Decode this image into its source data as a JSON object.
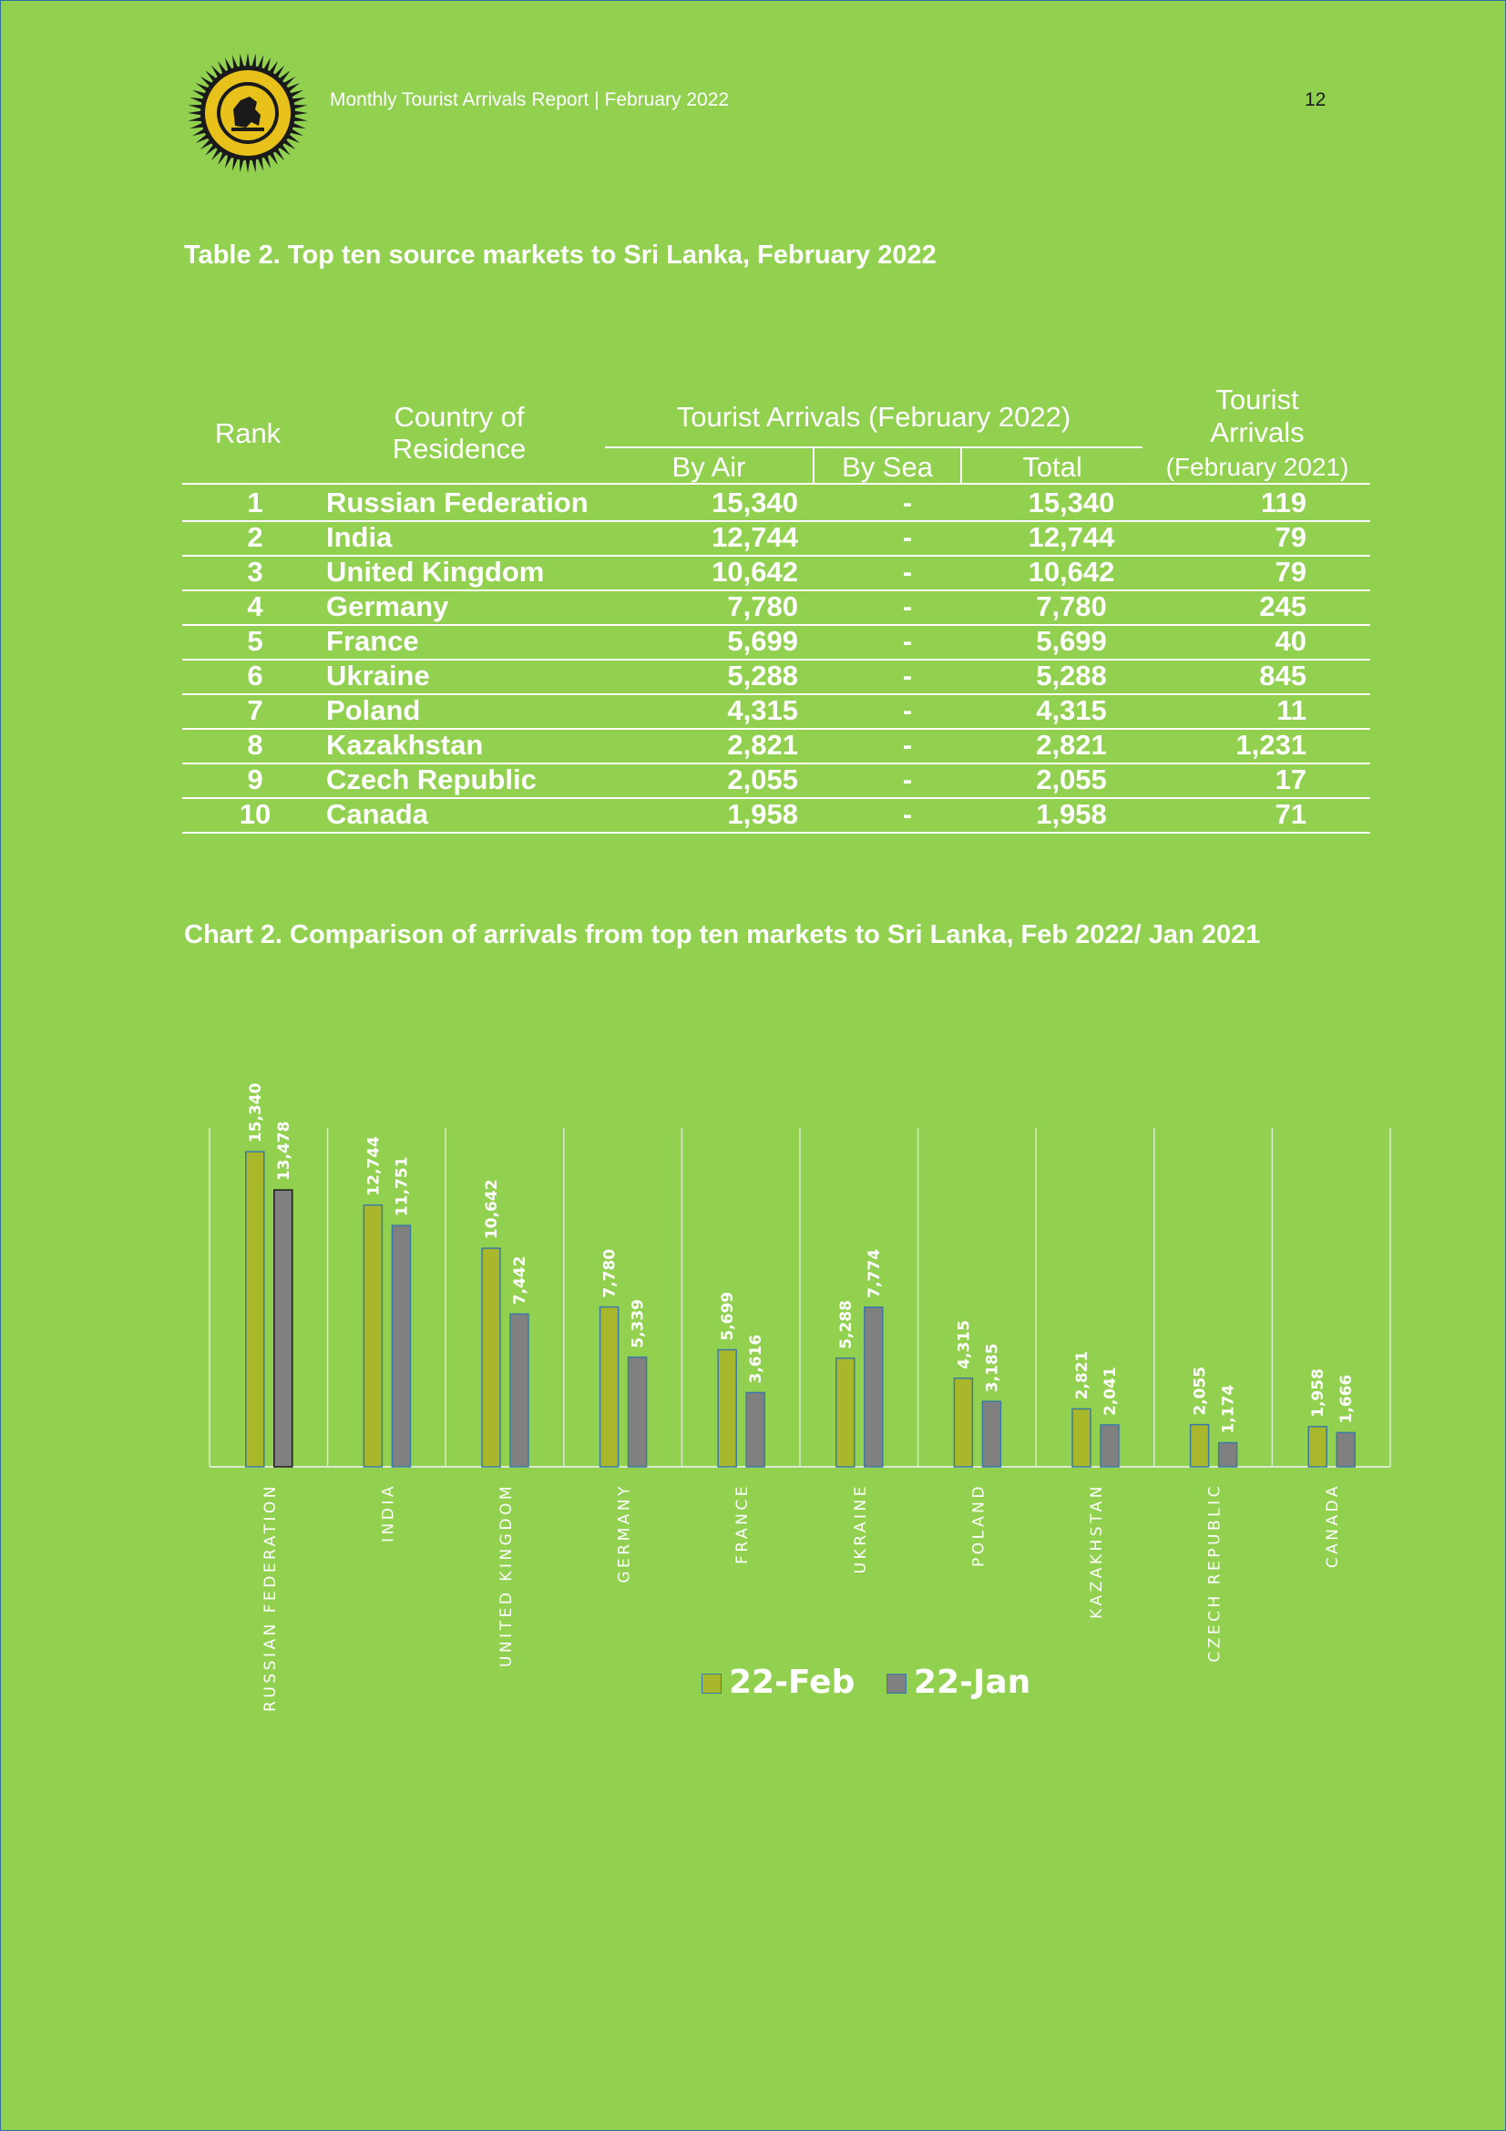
{
  "header": {
    "report_title": "Monthly Tourist Arrivals Report | February 2022",
    "page_number": "12"
  },
  "table": {
    "title": "Table 2. Top ten source markets to Sri Lanka, February  2022",
    "headers": {
      "rank": "Rank",
      "country_line1": "Country of",
      "country_line2": "Residence",
      "group": "Tourist Arrivals (February  2022)",
      "by_air": "By Air",
      "by_sea": "By Sea",
      "total": "Total",
      "prev_line1": "Tourist",
      "prev_line2": "Arrivals",
      "prev_line3": "(February 2021)"
    },
    "rows": [
      {
        "rank": "1",
        "country": "Russian Federation",
        "by_air": "15,340",
        "by_sea": "-",
        "total": "15,340",
        "prev": "119"
      },
      {
        "rank": "2",
        "country": "India",
        "by_air": "12,744",
        "by_sea": "-",
        "total": "12,744",
        "prev": "79"
      },
      {
        "rank": "3",
        "country": "United Kingdom",
        "by_air": "10,642",
        "by_sea": "-",
        "total": "10,642",
        "prev": "79"
      },
      {
        "rank": "4",
        "country": "Germany",
        "by_air": "7,780",
        "by_sea": "-",
        "total": "7,780",
        "prev": "245"
      },
      {
        "rank": "5",
        "country": "France",
        "by_air": "5,699",
        "by_sea": "-",
        "total": "5,699",
        "prev": "40"
      },
      {
        "rank": "6",
        "country": "Ukraine",
        "by_air": "5,288",
        "by_sea": "-",
        "total": "5,288",
        "prev": "845"
      },
      {
        "rank": "7",
        "country": "Poland",
        "by_air": "4,315",
        "by_sea": "-",
        "total": "4,315",
        "prev": "11"
      },
      {
        "rank": "8",
        "country": "Kazakhstan",
        "by_air": "2,821",
        "by_sea": "-",
        "total": "2,821",
        "prev": "1,231"
      },
      {
        "rank": "9",
        "country": "Czech Republic",
        "by_air": "2,055",
        "by_sea": "-",
        "total": "2,055",
        "prev": "17"
      },
      {
        "rank": "10",
        "country": "Canada",
        "by_air": "1,958",
        "by_sea": "-",
        "total": "1,958",
        "prev": "71"
      }
    ]
  },
  "chart_title": "Chart 2. Comparison of arrivals from top ten markets to Sri Lanka, Feb 2022/ Jan 2021",
  "colors": {
    "background": "#92d050",
    "series_feb": "#a9b72a",
    "series_jan": "#808080",
    "bar_border": "#3a7aa6",
    "grid": "#d9ead0",
    "text": "#ffffff"
  },
  "chart_data": {
    "type": "bar",
    "title": "",
    "xlabel": "",
    "ylabel": "",
    "ylim": [
      0,
      16500
    ],
    "grid": "vertical separators only",
    "legend_position": "bottom",
    "categories": [
      "RUSSIAN FEDERATION",
      "INDIA",
      "UNITED KINGDOM",
      "GERMANY",
      "FRANCE",
      "UKRAINE",
      "POLAND",
      "KAZAKHSTAN",
      "CZECH REPUBLIC",
      "CANADA"
    ],
    "series": [
      {
        "name": "22-Feb",
        "values": [
          15340,
          12744,
          10642,
          7780,
          5699,
          5288,
          4315,
          2821,
          2055,
          1958
        ],
        "labels": [
          "15,340",
          "12,744",
          "10,642",
          "7,780",
          "5,699",
          "5,288",
          "4,315",
          "2,821",
          "2,055",
          "1,958"
        ]
      },
      {
        "name": "22-Jan",
        "values": [
          13478,
          11751,
          7442,
          5339,
          3616,
          7774,
          3185,
          2041,
          1174,
          1666
        ],
        "labels": [
          "13,478",
          "11,751",
          "7,442",
          "5,339",
          "3,616",
          "7,774",
          "3,185",
          "2,041",
          "1,174",
          "1,666"
        ]
      }
    ]
  }
}
